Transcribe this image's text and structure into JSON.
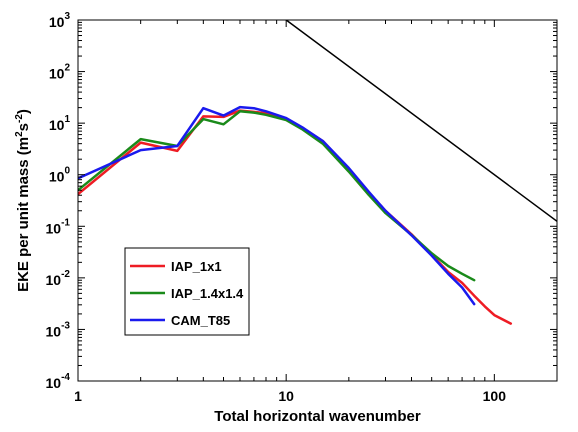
{
  "chart_data": {
    "type": "line",
    "title": "",
    "xlabel": "Total horizontal wavenumber",
    "ylabel_main": "EKE per unit mass (m",
    "ylabel_sup1": "2",
    "ylabel_mid": "s",
    "ylabel_sup2": "-2",
    "ylabel_end": ")",
    "x_scale": "log",
    "y_scale": "log",
    "xlim": [
      1,
      200
    ],
    "ylim": [
      0.0001,
      1000
    ],
    "x_ticks": [
      {
        "value": 1,
        "label": "1"
      },
      {
        "value": 10,
        "label": "10"
      },
      {
        "value": 100,
        "label": "100"
      }
    ],
    "y_ticks": [
      {
        "value": 0.0001,
        "base": "10",
        "exp": "-4"
      },
      {
        "value": 0.001,
        "base": "10",
        "exp": "-3"
      },
      {
        "value": 0.01,
        "base": "10",
        "exp": "-2"
      },
      {
        "value": 0.1,
        "base": "10",
        "exp": "-1"
      },
      {
        "value": 1,
        "base": "10",
        "exp": "0"
      },
      {
        "value": 10,
        "base": "10",
        "exp": "1"
      },
      {
        "value": 100,
        "base": "10",
        "exp": "2"
      },
      {
        "value": 1000,
        "base": "10",
        "exp": "3"
      }
    ],
    "grid": false,
    "legend_position": "bottom-left",
    "series": [
      {
        "name": "IAP_1x1",
        "color": "#ee1c24",
        "x": [
          1,
          2,
          3,
          4,
          5,
          6,
          7,
          8,
          10,
          12,
          15,
          20,
          25,
          30,
          40,
          50,
          60,
          70,
          80,
          90,
          100,
          120
        ],
        "y": [
          0.42,
          4.2,
          2.9,
          13.5,
          13.2,
          17.5,
          16.5,
          15.5,
          12,
          8,
          4.5,
          1.3,
          0.45,
          0.2,
          0.07,
          0.028,
          0.013,
          0.008,
          0.0045,
          0.0028,
          0.0019,
          0.0013
        ]
      },
      {
        "name": "IAP_1.4x1.4",
        "color": "#1a8a1a",
        "x": [
          1,
          2,
          3,
          4,
          5,
          6,
          7,
          8,
          10,
          12,
          15,
          20,
          25,
          30,
          40,
          50,
          60,
          70,
          80
        ],
        "y": [
          0.5,
          4.9,
          3.6,
          12,
          9.5,
          17,
          16,
          14.5,
          11.5,
          7.5,
          4,
          1.15,
          0.4,
          0.18,
          0.068,
          0.03,
          0.017,
          0.012,
          0.009
        ]
      },
      {
        "name": "CAM_T85",
        "color": "#1a1aee",
        "x": [
          1,
          2,
          3,
          4,
          5,
          6,
          7,
          8,
          10,
          12,
          15,
          20,
          25,
          30,
          40,
          50,
          60,
          70,
          80
        ],
        "y": [
          0.85,
          3,
          3.6,
          19.5,
          14,
          20.5,
          19.5,
          17,
          12.5,
          8.2,
          4.5,
          1.35,
          0.46,
          0.2,
          0.067,
          0.027,
          0.012,
          0.0065,
          0.0031
        ]
      },
      {
        "name": "",
        "color": "#000000",
        "x": [
          10,
          200
        ],
        "y": [
          1000,
          0.125
        ]
      }
    ]
  }
}
